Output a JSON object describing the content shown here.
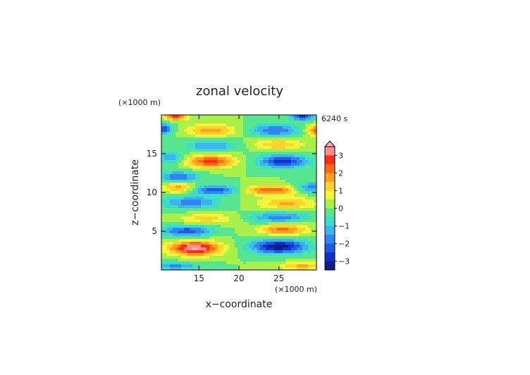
{
  "chart_data": {
    "type": "heatmap",
    "title": "zonal velocity",
    "xlabel": "x−coordinate",
    "ylabel": "z−coordinate",
    "x_unit": "(×1000 m)",
    "y_unit": "(×1000 m)",
    "time_label": "6240 s",
    "xlim": [
      10.3,
      29.7
    ],
    "ylim": [
      0,
      20
    ],
    "x_ticks": [
      15,
      20,
      25
    ],
    "x_tick_labels": [
      "15",
      "20",
      "25"
    ],
    "y_ticks": [
      5,
      10,
      15
    ],
    "y_tick_labels": [
      "5",
      "10",
      "15"
    ],
    "grid": false,
    "legend": "colorbar-right",
    "colorbar": {
      "levels": [
        -3.5,
        -3,
        -2.5,
        -2,
        -1.5,
        -1,
        -0.5,
        0,
        0.5,
        1,
        1.5,
        2,
        2.5,
        3,
        3.5
      ],
      "colors": [
        "#0a1f8c",
        "#0f32c8",
        "#1e5ae6",
        "#2f86f2",
        "#3cb4f0",
        "#3edccd",
        "#56e690",
        "#aaf04a",
        "#f4f43c",
        "#ffd22c",
        "#ffa01e",
        "#ff6a14",
        "#ff2a1a",
        "#ff8c8c",
        "#ffb8b8"
      ],
      "tick_values": [
        3,
        2,
        1,
        0,
        -1,
        -2,
        -3
      ],
      "tick_labels": [
        "3",
        "2",
        "1",
        "0",
        "−1",
        "−2",
        "−3"
      ]
    },
    "field": {
      "description_mode": "superposition_of_features",
      "features": [
        {
          "x": 14.5,
          "z": 2.8,
          "amp": 3.6,
          "sx": 3.2,
          "sz": 0.9
        },
        {
          "x": 25.0,
          "z": 3.0,
          "amp": -3.4,
          "sx": 3.4,
          "sz": 0.9
        },
        {
          "x": 12.0,
          "z": 0.5,
          "amp": -1.6,
          "sx": 3.0,
          "sz": 0.5
        },
        {
          "x": 28.0,
          "z": 0.5,
          "amp": 1.6,
          "sx": 3.0,
          "sz": 0.5
        },
        {
          "x": 13.5,
          "z": 5.0,
          "amp": -2.4,
          "sx": 3.0,
          "sz": 0.7
        },
        {
          "x": 25.5,
          "z": 5.2,
          "amp": 2.2,
          "sx": 3.0,
          "sz": 0.7
        },
        {
          "x": 16.0,
          "z": 6.6,
          "amp": 1.2,
          "sx": 3.5,
          "sz": 0.7
        },
        {
          "x": 25.0,
          "z": 6.8,
          "amp": -1.8,
          "sx": 3.5,
          "sz": 0.7
        },
        {
          "x": 14.0,
          "z": 8.7,
          "amp": -1.8,
          "sx": 3.5,
          "sz": 0.8
        },
        {
          "x": 26.0,
          "z": 8.6,
          "amp": 1.6,
          "sx": 3.5,
          "sz": 0.8
        },
        {
          "x": 17.0,
          "z": 10.3,
          "amp": -2.3,
          "sx": 3.0,
          "sz": 0.6
        },
        {
          "x": 24.0,
          "z": 10.3,
          "amp": 2.5,
          "sx": 3.2,
          "sz": 0.6
        },
        {
          "x": 12.5,
          "z": 10.6,
          "amp": 1.8,
          "sx": 2.0,
          "sz": 0.7
        },
        {
          "x": 29.0,
          "z": 10.6,
          "amp": -1.8,
          "sx": 2.0,
          "sz": 0.7
        },
        {
          "x": 12.5,
          "z": 12.0,
          "amp": -2.0,
          "sx": 2.5,
          "sz": 0.7
        },
        {
          "x": 16.5,
          "z": 14.0,
          "amp": 2.7,
          "sx": 3.0,
          "sz": 0.8
        },
        {
          "x": 25.5,
          "z": 14.0,
          "amp": -2.8,
          "sx": 3.0,
          "sz": 0.8
        },
        {
          "x": 11.5,
          "z": 14.5,
          "amp": -1.5,
          "sx": 1.5,
          "sz": 0.8
        },
        {
          "x": 16.5,
          "z": 16.0,
          "amp": -1.6,
          "sx": 3.0,
          "sz": 0.7
        },
        {
          "x": 25.0,
          "z": 16.2,
          "amp": 1.5,
          "sx": 3.0,
          "sz": 0.7
        },
        {
          "x": 16.5,
          "z": 18.0,
          "amp": 1.8,
          "sx": 3.0,
          "sz": 0.8
        },
        {
          "x": 24.5,
          "z": 18.0,
          "amp": -2.0,
          "sx": 3.0,
          "sz": 0.8
        },
        {
          "x": 10.5,
          "z": 18.2,
          "amp": -2.4,
          "sx": 1.2,
          "sz": 0.7
        },
        {
          "x": 29.6,
          "z": 18.0,
          "amp": 2.2,
          "sx": 1.2,
          "sz": 0.7
        },
        {
          "x": 12.0,
          "z": 19.8,
          "amp": 2.6,
          "sx": 1.5,
          "sz": 0.5
        },
        {
          "x": 28.0,
          "z": 19.8,
          "amp": -2.6,
          "sx": 1.5,
          "sz": 0.5
        }
      ]
    }
  }
}
